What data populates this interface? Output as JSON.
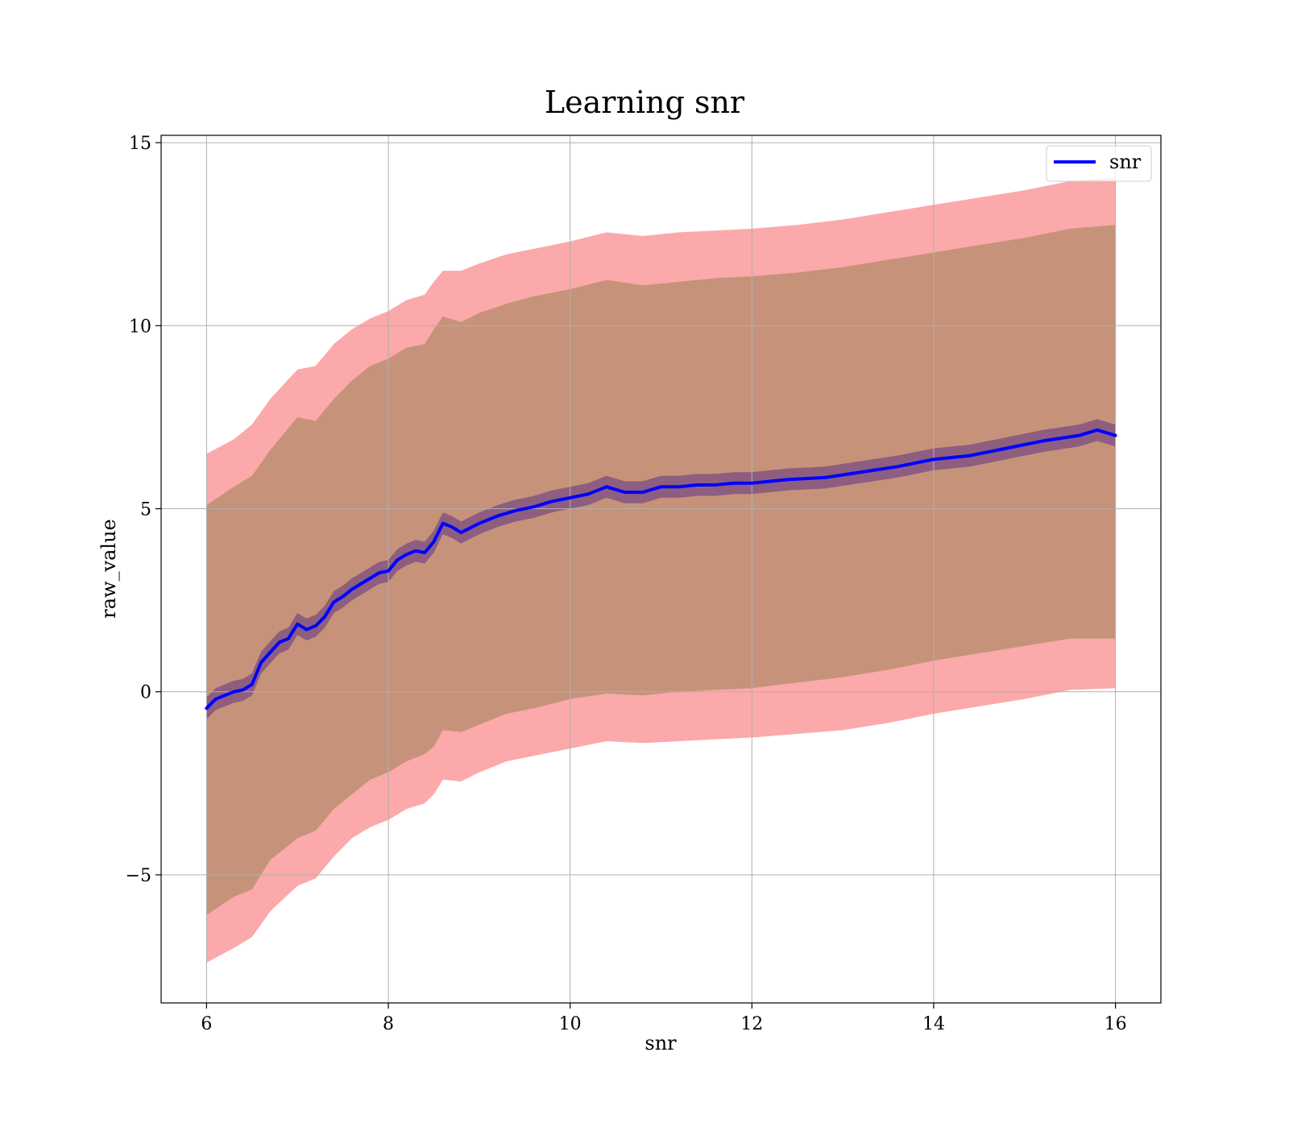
{
  "chart_data": {
    "type": "line",
    "title": "Learning snr",
    "xlabel": "snr",
    "ylabel": "raw_value",
    "xlim": [
      5.5,
      16.5
    ],
    "ylim": [
      -8.5,
      15.2
    ],
    "x_ticks": [
      6,
      8,
      10,
      12,
      14,
      16
    ],
    "x_tick_labels": [
      "6",
      "8",
      "10",
      "12",
      "14",
      "16"
    ],
    "y_ticks": [
      -5,
      0,
      5,
      10,
      15
    ],
    "y_tick_labels": [
      "−5",
      "0",
      "5",
      "10",
      "15"
    ],
    "grid": true,
    "legend_position": "top-right",
    "series": [
      {
        "name": "snr",
        "color": "#0000ff",
        "x": [
          6.0,
          6.1,
          6.2,
          6.3,
          6.4,
          6.5,
          6.6,
          6.8,
          6.9,
          7.0,
          7.1,
          7.2,
          7.3,
          7.4,
          7.5,
          7.6,
          7.8,
          7.9,
          8.0,
          8.1,
          8.2,
          8.3,
          8.4,
          8.5,
          8.6,
          8.7,
          8.8,
          9.0,
          9.2,
          9.4,
          9.6,
          9.8,
          10.0,
          10.2,
          10.4,
          10.6,
          10.8,
          11.0,
          11.2,
          11.4,
          11.6,
          11.8,
          12.0,
          12.4,
          12.8,
          13.2,
          13.6,
          14.0,
          14.4,
          14.8,
          15.2,
          15.6,
          15.8,
          16.0
        ],
        "values": [
          -0.45,
          -0.2,
          -0.1,
          0.0,
          0.05,
          0.2,
          0.8,
          1.35,
          1.45,
          1.85,
          1.7,
          1.8,
          2.05,
          2.45,
          2.6,
          2.8,
          3.1,
          3.25,
          3.3,
          3.6,
          3.75,
          3.85,
          3.8,
          4.1,
          4.6,
          4.5,
          4.35,
          4.6,
          4.8,
          4.95,
          5.05,
          5.2,
          5.3,
          5.4,
          5.6,
          5.45,
          5.45,
          5.6,
          5.6,
          5.65,
          5.65,
          5.7,
          5.7,
          5.8,
          5.85,
          6.0,
          6.15,
          6.35,
          6.45,
          6.65,
          6.85,
          7.0,
          7.15,
          7.0
        ]
      }
    ],
    "bands": [
      {
        "color": "#fba9aa",
        "x": [
          6.0,
          6.3,
          6.5,
          6.7,
          7.0,
          7.2,
          7.4,
          7.6,
          7.8,
          8.0,
          8.2,
          8.4,
          8.5,
          8.6,
          8.8,
          9.0,
          9.3,
          9.6,
          10.0,
          10.4,
          10.8,
          11.2,
          11.6,
          12.0,
          12.5,
          13.0,
          13.5,
          14.0,
          14.5,
          15.0,
          15.5,
          16.0
        ],
        "upper": [
          6.5,
          6.9,
          7.3,
          8.0,
          8.8,
          8.9,
          9.5,
          9.9,
          10.2,
          10.4,
          10.7,
          10.85,
          11.2,
          11.5,
          11.5,
          11.7,
          11.95,
          12.1,
          12.3,
          12.55,
          12.45,
          12.55,
          12.6,
          12.65,
          12.75,
          12.9,
          13.1,
          13.3,
          13.5,
          13.7,
          13.95,
          14.05
        ],
        "lower": [
          -7.4,
          -7.0,
          -6.7,
          -6.0,
          -5.3,
          -5.1,
          -4.5,
          -4.0,
          -3.7,
          -3.5,
          -3.2,
          -3.05,
          -2.8,
          -2.4,
          -2.45,
          -2.2,
          -1.9,
          -1.75,
          -1.55,
          -1.35,
          -1.4,
          -1.35,
          -1.3,
          -1.25,
          -1.15,
          -1.05,
          -0.85,
          -0.6,
          -0.4,
          -0.2,
          0.05,
          0.1
        ]
      },
      {
        "color": "#c6937a",
        "x": [
          6.0,
          6.3,
          6.5,
          6.7,
          7.0,
          7.2,
          7.4,
          7.6,
          7.8,
          8.0,
          8.2,
          8.4,
          8.5,
          8.6,
          8.8,
          9.0,
          9.3,
          9.6,
          10.0,
          10.4,
          10.8,
          11.2,
          11.6,
          12.0,
          12.5,
          13.0,
          13.5,
          14.0,
          14.5,
          15.0,
          15.5,
          16.0
        ],
        "upper": [
          5.1,
          5.6,
          5.9,
          6.6,
          7.5,
          7.4,
          8.0,
          8.5,
          8.9,
          9.1,
          9.4,
          9.5,
          9.9,
          10.25,
          10.1,
          10.35,
          10.6,
          10.8,
          11.0,
          11.25,
          11.1,
          11.2,
          11.3,
          11.35,
          11.45,
          11.6,
          11.8,
          12.0,
          12.2,
          12.4,
          12.65,
          12.75
        ],
        "lower": [
          -6.1,
          -5.6,
          -5.4,
          -4.6,
          -4.0,
          -3.8,
          -3.2,
          -2.8,
          -2.4,
          -2.2,
          -1.9,
          -1.7,
          -1.5,
          -1.05,
          -1.1,
          -0.9,
          -0.6,
          -0.45,
          -0.2,
          -0.05,
          -0.1,
          0.0,
          0.05,
          0.1,
          0.25,
          0.4,
          0.6,
          0.85,
          1.05,
          1.25,
          1.45,
          1.45
        ]
      },
      {
        "color": "#8e5e80",
        "spread": 0.3
      }
    ]
  }
}
